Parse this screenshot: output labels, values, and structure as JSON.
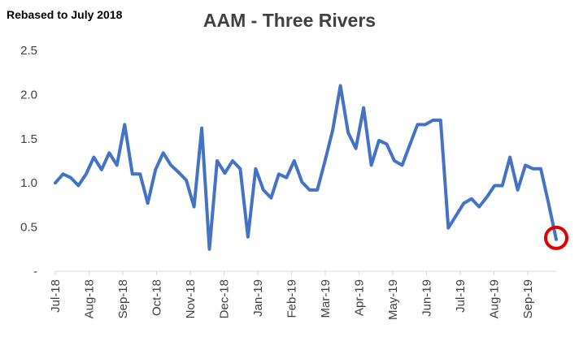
{
  "chart_data": {
    "type": "line",
    "title": "AAM - Three Rivers",
    "subtitle": "Rebased to July 2018",
    "xlabel": "",
    "ylabel": "",
    "ylim": [
      0,
      2.5
    ],
    "y_ticks": [
      "-",
      "0.5",
      "1.0",
      "1.5",
      "2.0",
      "2.5"
    ],
    "x_tick_labels": [
      "Jul-18",
      "Aug-18",
      "Sep-18",
      "Oct-18",
      "Nov-18",
      "Dec-18",
      "Jan-19",
      "Feb-19",
      "Mar-19",
      "Apr-19",
      "May-19",
      "Jun-19",
      "Jul-19",
      "Aug-19",
      "Sep-19"
    ],
    "grid": false,
    "legend": "none",
    "line_color": "#4472C4",
    "highlight_color": "#E00000",
    "series": [
      {
        "values": [
          1.0,
          1.1,
          1.06,
          0.97,
          1.1,
          1.29,
          1.15,
          1.34,
          1.2,
          1.66,
          1.1,
          1.1,
          0.77,
          1.15,
          1.34,
          1.2,
          1.12,
          1.03,
          0.73,
          1.62,
          0.25,
          1.25,
          1.11,
          1.25,
          1.16,
          0.39,
          1.16,
          0.92,
          0.83,
          1.1,
          1.06,
          1.25,
          1.01,
          0.92,
          0.92,
          1.25,
          1.6,
          2.1,
          1.57,
          1.39,
          1.85,
          1.2,
          1.48,
          1.44,
          1.25,
          1.2,
          1.43,
          1.66,
          1.66,
          1.71,
          1.71,
          0.49,
          0.63,
          0.77,
          0.82,
          0.73,
          0.84,
          0.97,
          0.97,
          1.29,
          0.92,
          1.2,
          1.16,
          1.16,
          0.77,
          0.36
        ]
      }
    ],
    "highlight_point_index": 65
  }
}
